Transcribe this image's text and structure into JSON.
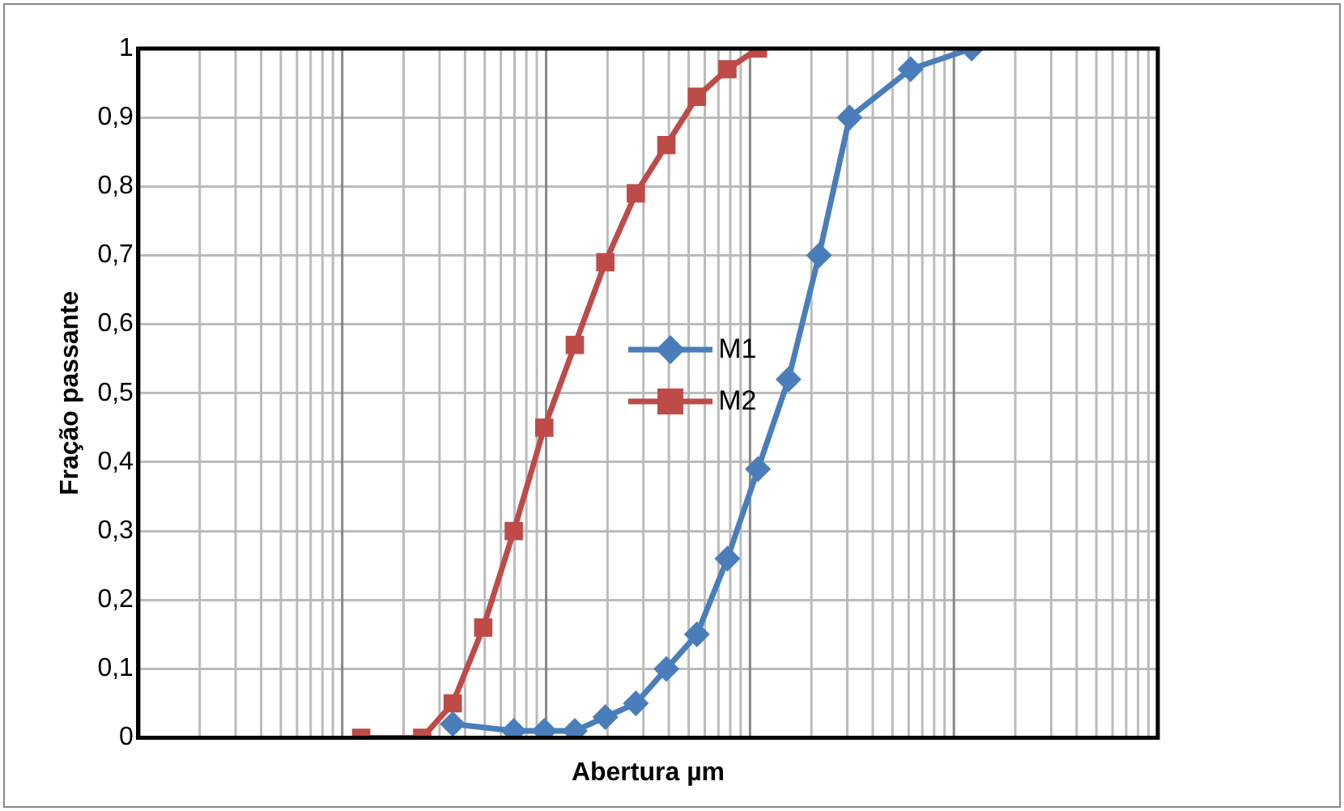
{
  "chart_data": {
    "type": "line",
    "xlabel": "Abertura µm",
    "ylabel": "Fração passante",
    "categories": [
      null,
      null,
      null,
      null,
      null,
      null,
      null,
      null,
      null,
      null,
      null,
      null,
      null,
      null,
      null,
      null,
      null,
      null,
      null,
      null,
      null
    ],
    "ylim": [
      0,
      1
    ],
    "yticks": [
      0,
      {
        "value": 0.1,
        "label": "0,1"
      },
      {
        "value": 0.2,
        "label": "0,2"
      },
      {
        "value": 0.3,
        "label": "0,3"
      },
      {
        "value": 0.4,
        "label": "0,4"
      },
      {
        "value": 0.5,
        "label": "0,5"
      },
      {
        "value": 0.6,
        "label": "0,6"
      },
      {
        "value": 0.7,
        "label": "0,7"
      },
      {
        "value": 0.8,
        "label": "0,8"
      },
      {
        "value": 0.9,
        "label": "0,9"
      },
      1
    ],
    "grid": true,
    "legend": "center",
    "tick_labels": "y",
    "series": [
      {
        "name": "M1",
        "color": "#4a7ebb",
        "marker": "diamond",
        "values": [
          null,
          null,
          null,
          0.02,
          null,
          0.01,
          0.01,
          0.01,
          0.03,
          0.05,
          0.1,
          0.15,
          0.26,
          0.39,
          0.52,
          0.7,
          0.9,
          null,
          0.97,
          null,
          1
        ]
      },
      {
        "name": "M2",
        "color": "#be4b48",
        "marker": "square",
        "values": [
          0,
          null,
          0,
          0.05,
          0.16,
          0.3,
          0.45,
          0.57,
          0.69,
          0.79,
          0.86,
          0.93,
          0.97,
          1,
          null,
          null,
          null,
          null,
          null,
          null,
          null
        ]
      }
    ]
  }
}
